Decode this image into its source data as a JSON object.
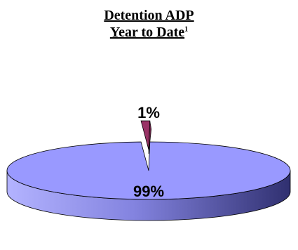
{
  "chart_data": {
    "type": "pie",
    "title_line1": "Detention ADP",
    "title_line2": "Year to Date",
    "title_footnote_mark": "1",
    "slices": [
      {
        "label": "99%",
        "value": 99,
        "color": "#9999ff"
      },
      {
        "label": "1%",
        "value": 1,
        "color": "#993366"
      }
    ]
  }
}
